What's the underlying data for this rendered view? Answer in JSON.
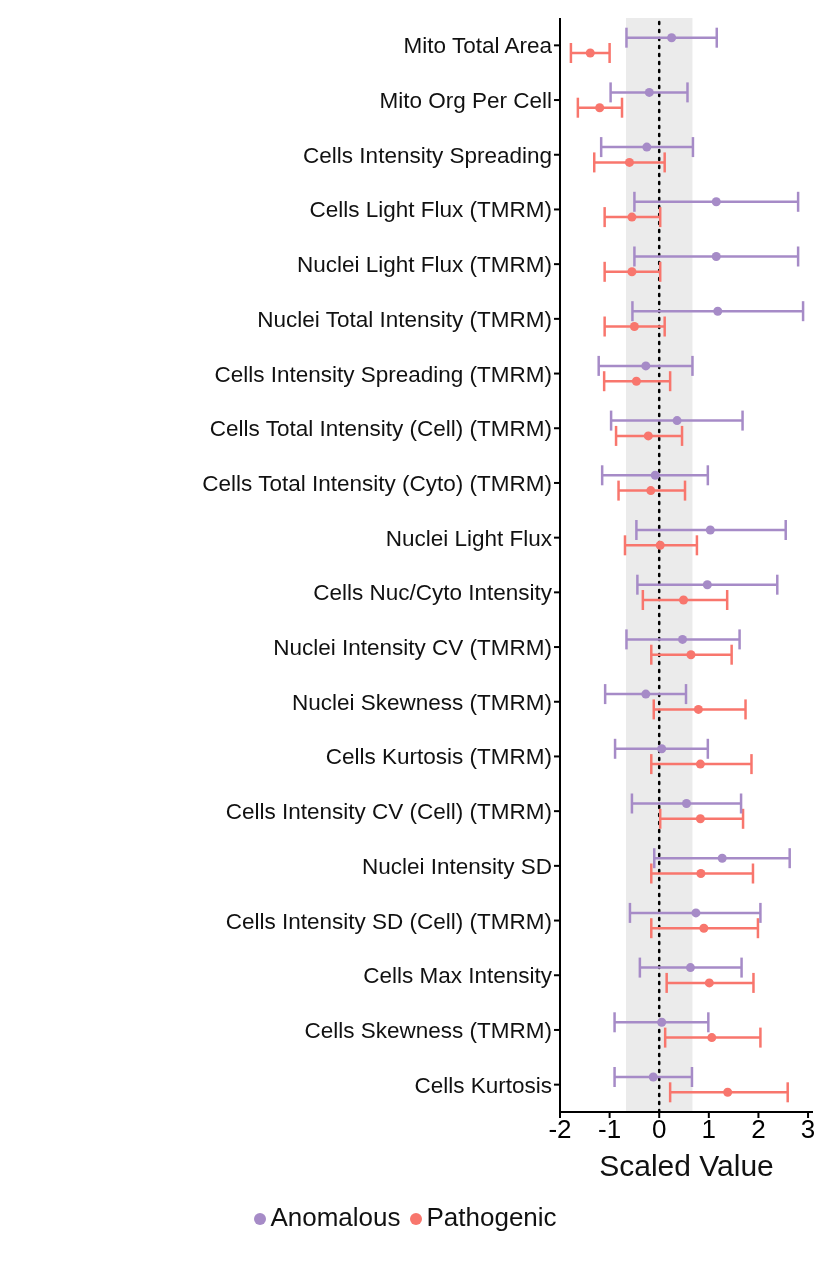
{
  "chart_data": {
    "type": "scatter",
    "orientation": "horizontal",
    "xlabel": "Scaled Value",
    "marker": "circle",
    "legend": "bottom",
    "categories": [
      "Mito Total Area",
      "Mito Org Per Cell",
      "Cells Intensity Spreading",
      "Cells Light Flux (TMRM)",
      "Nuclei Light Flux (TMRM)",
      "Nuclei Total Intensity (TMRM)",
      "Cells Intensity Spreading (TMRM)",
      "Cells Total Intensity (Cell) (TMRM)",
      "Cells Total Intensity (Cyto) (TMRM)",
      "Nuclei Light Flux",
      "Cells Nuc/Cyto Intensity",
      "Nuclei Intensity CV (TMRM)",
      "Nuclei Skewness (TMRM)",
      "Cells Kurtosis (TMRM)",
      "Cells Intensity CV (Cell) (TMRM)",
      "Nuclei Intensity SD",
      "Cells Intensity SD (Cell) (TMRM)",
      "Cells Max Intensity",
      "Cells Skewness (TMRM)",
      "Cells Kurtosis"
    ],
    "xlim": [
      -2,
      3.1
    ],
    "xticks": [
      -2,
      -1,
      0,
      1,
      2,
      3
    ],
    "bands": [
      {
        "axis": "x",
        "from": -0.67,
        "to": 0.67,
        "color": "#ebebeb"
      }
    ],
    "ref_lines": [
      {
        "axis": "x",
        "value": 0,
        "line_style": "dotted",
        "color": "#000000"
      }
    ],
    "series": [
      {
        "name": "Pathogenic",
        "color": "#f8766d",
        "values": [
          -1.39,
          -1.2,
          -0.6,
          -0.55,
          -0.55,
          -0.5,
          -0.46,
          -0.22,
          -0.17,
          0.02,
          0.49,
          0.64,
          0.79,
          0.83,
          0.83,
          0.84,
          0.9,
          1.01,
          1.06,
          1.38
        ],
        "errors": [
          [
            -1.78,
            -1.0
          ],
          [
            -1.64,
            -0.75
          ],
          [
            -1.31,
            0.11
          ],
          [
            -1.1,
            0.02
          ],
          [
            -1.1,
            0.02
          ],
          [
            -1.1,
            0.11
          ],
          [
            -1.11,
            0.22
          ],
          [
            -0.87,
            0.46
          ],
          [
            -0.82,
            0.52
          ],
          [
            -0.69,
            0.76
          ],
          [
            -0.33,
            1.37
          ],
          [
            -0.16,
            1.46
          ],
          [
            -0.11,
            1.74
          ],
          [
            -0.16,
            1.86
          ],
          [
            0.02,
            1.69
          ],
          [
            -0.16,
            1.89
          ],
          [
            -0.16,
            1.99
          ],
          [
            0.15,
            1.9
          ],
          [
            0.12,
            2.04
          ],
          [
            0.22,
            2.59
          ]
        ]
      },
      {
        "name": "Anomalous",
        "color": "#a68bc7",
        "values": [
          0.25,
          -0.2,
          -0.25,
          1.15,
          1.15,
          1.18,
          -0.27,
          0.36,
          -0.08,
          1.03,
          0.97,
          0.47,
          -0.27,
          0.05,
          0.55,
          1.27,
          0.74,
          0.63,
          0.05,
          -0.12
        ],
        "errors": [
          [
            -0.66,
            1.16
          ],
          [
            -0.98,
            0.57
          ],
          [
            -1.17,
            0.68
          ],
          [
            -0.5,
            2.8
          ],
          [
            -0.5,
            2.8
          ],
          [
            -0.54,
            2.9
          ],
          [
            -1.22,
            0.67
          ],
          [
            -0.97,
            1.68
          ],
          [
            -1.15,
            0.98
          ],
          [
            -0.46,
            2.55
          ],
          [
            -0.44,
            2.38
          ],
          [
            -0.66,
            1.62
          ],
          [
            -1.09,
            0.54
          ],
          [
            -0.89,
            0.98
          ],
          [
            -0.55,
            1.65
          ],
          [
            -0.1,
            2.63
          ],
          [
            -0.59,
            2.04
          ],
          [
            -0.39,
            1.66
          ],
          [
            -0.9,
            0.99
          ],
          [
            -0.9,
            0.66
          ]
        ]
      }
    ]
  }
}
